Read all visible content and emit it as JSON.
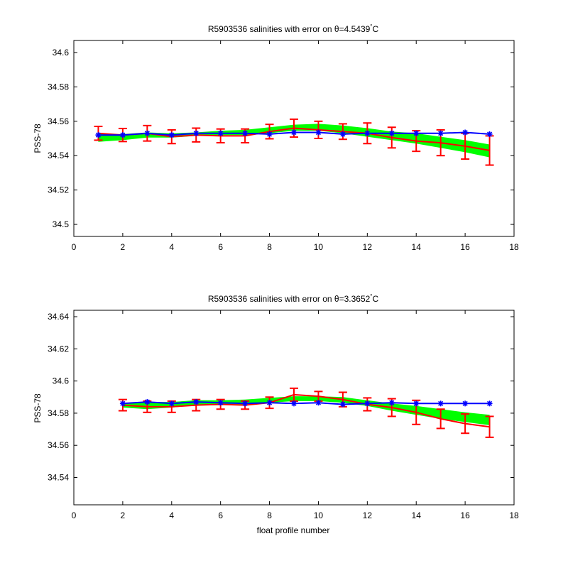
{
  "figure": {
    "xlabel": "float profile number"
  },
  "colors": {
    "calibrated_line": "#ff0000",
    "original_line": "#0000ff",
    "error_band": "#00ff00",
    "errorbar": "#ff0000",
    "axes": "#000000"
  },
  "chart_data": [
    {
      "type": "line",
      "title": "R5903536 salinities with error on θ=4.5439",
      "title_sup": "°",
      "title_suffix": "C",
      "xlabel": "",
      "ylabel": "PSS-78",
      "xlim": [
        0,
        18
      ],
      "ylim": [
        34.493,
        34.607
      ],
      "xticks": [
        0,
        2,
        4,
        6,
        8,
        10,
        12,
        14,
        16,
        18
      ],
      "yticks": [
        34.5,
        34.52,
        34.54,
        34.56,
        34.58,
        34.6
      ],
      "ytick_labels": [
        "34.5",
        "34.52",
        "34.54",
        "34.56",
        "34.58",
        "34.6"
      ],
      "x": [
        1,
        2,
        3,
        4,
        5,
        6,
        7,
        8,
        9,
        10,
        11,
        12,
        13,
        14,
        15,
        16,
        17
      ],
      "series": [
        {
          "role": "band",
          "upper": [
            34.5525,
            34.5525,
            34.5535,
            34.553,
            34.5535,
            34.5545,
            34.555,
            34.5565,
            34.558,
            34.5585,
            34.5575,
            34.556,
            34.554,
            34.553,
            34.551,
            34.549,
            34.5465
          ],
          "lower": [
            34.548,
            34.549,
            34.5505,
            34.5505,
            34.5515,
            34.552,
            34.552,
            34.553,
            34.5545,
            34.5545,
            34.553,
            34.551,
            34.549,
            34.547,
            34.5445,
            34.542,
            34.539
          ]
        },
        {
          "role": "calibrated",
          "values": [
            34.553,
            34.552,
            34.553,
            34.551,
            34.552,
            34.5515,
            34.5515,
            34.554,
            34.556,
            34.555,
            34.554,
            34.553,
            34.5505,
            34.5485,
            34.5475,
            34.5455,
            34.543
          ],
          "err": [
            0.004,
            0.0038,
            0.0045,
            0.004,
            0.004,
            0.004,
            0.004,
            0.0042,
            0.0052,
            0.005,
            0.0045,
            0.006,
            0.006,
            0.006,
            0.0075,
            0.0075,
            0.0085
          ]
        },
        {
          "role": "original",
          "values": [
            34.552,
            34.552,
            34.553,
            34.552,
            34.553,
            34.553,
            34.553,
            34.5525,
            34.5535,
            34.5535,
            34.5525,
            34.553,
            34.553,
            34.553,
            34.553,
            34.5535,
            34.5525
          ]
        }
      ]
    },
    {
      "type": "line",
      "title": "R5903536 salinities with error on θ=3.3652",
      "title_sup": "°",
      "title_suffix": "C",
      "xlabel": "float profile number",
      "ylabel": "PSS-78",
      "xlim": [
        0,
        18
      ],
      "ylim": [
        34.523,
        34.644
      ],
      "xticks": [
        0,
        2,
        4,
        6,
        8,
        10,
        12,
        14,
        16,
        18
      ],
      "yticks": [
        34.54,
        34.56,
        34.58,
        34.6,
        34.62,
        34.64
      ],
      "ytick_labels": [
        "34.54",
        "34.56",
        "34.58",
        "34.6",
        "34.62",
        "34.64"
      ],
      "x": [
        2,
        3,
        4,
        5,
        6,
        7,
        8,
        9,
        10,
        11,
        12,
        13,
        14,
        15,
        16,
        17
      ],
      "series": [
        {
          "role": "band",
          "upper": [
            34.586,
            34.587,
            34.587,
            34.588,
            34.588,
            34.5885,
            34.5895,
            34.5905,
            34.5905,
            34.59,
            34.588,
            34.586,
            34.5845,
            34.5825,
            34.5805,
            34.579
          ],
          "lower": [
            34.5835,
            34.5825,
            34.5835,
            34.585,
            34.585,
            34.5855,
            34.5865,
            34.5875,
            34.5875,
            34.5865,
            34.5845,
            34.5815,
            34.579,
            34.5765,
            34.5745,
            34.5725
          ]
        },
        {
          "role": "calibrated",
          "values": [
            34.585,
            34.584,
            34.584,
            34.585,
            34.5855,
            34.585,
            34.5865,
            34.5915,
            34.5905,
            34.5885,
            34.5855,
            34.5835,
            34.5805,
            34.5765,
            34.5735,
            34.5715
          ],
          "err": [
            0.0035,
            0.0035,
            0.0035,
            0.0035,
            0.003,
            0.0025,
            0.0035,
            0.004,
            0.003,
            0.0045,
            0.004,
            0.0055,
            0.0075,
            0.006,
            0.006,
            0.0065
          ]
        },
        {
          "role": "original",
          "values": [
            34.586,
            34.587,
            34.586,
            34.587,
            34.5865,
            34.586,
            34.5865,
            34.586,
            34.5865,
            34.5855,
            34.586,
            34.5865,
            34.586,
            34.586,
            34.586,
            34.586
          ]
        }
      ]
    }
  ]
}
